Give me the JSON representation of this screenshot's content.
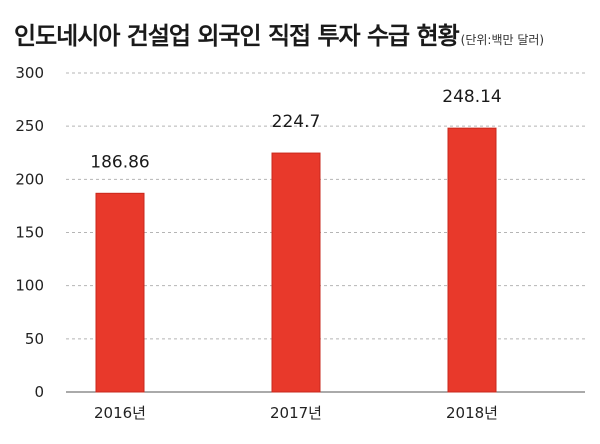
{
  "chart_data": {
    "type": "bar",
    "title": "인도네시아 건설업 외국인 직접 투자 수급 현황",
    "unit_note": "(단위:백만 달러)",
    "categories": [
      "2016년",
      "2017년",
      "2018년"
    ],
    "values": [
      186.86,
      224.7,
      248.14
    ],
    "value_labels": [
      "186.86",
      "224.7",
      "248.14"
    ],
    "xlabel": "",
    "ylabel": "",
    "ylim": [
      0,
      300
    ],
    "yticks": [
      0,
      50,
      100,
      150,
      200,
      250,
      300
    ],
    "grid": true,
    "legend": "none",
    "bar_color": "#e8392b",
    "bar_edge_color": "#c9281c"
  }
}
